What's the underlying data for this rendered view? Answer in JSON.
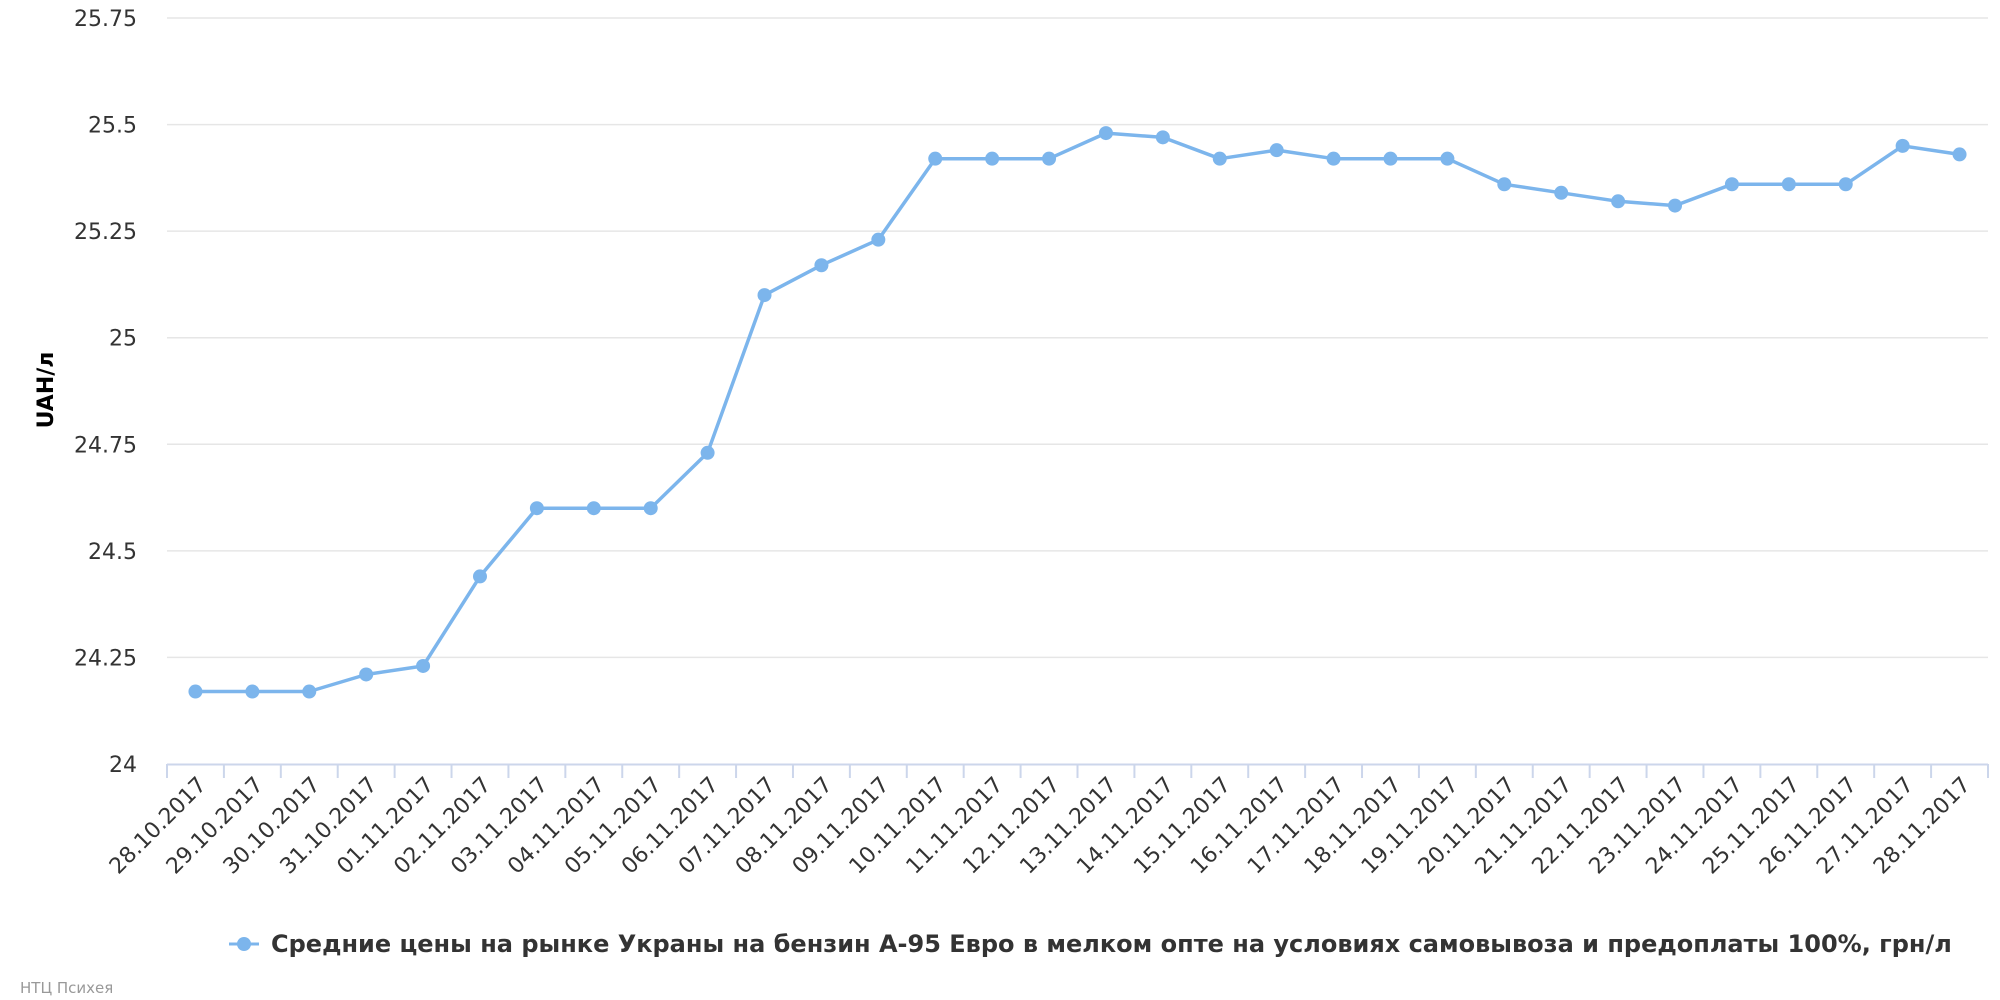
{
  "chart_data": {
    "type": "line",
    "title": "",
    "xlabel": "",
    "ylabel": "UAH/л",
    "ylim": [
      24,
      25.75
    ],
    "yticks": [
      "24",
      "24.25",
      "24.5",
      "24.75",
      "25",
      "25.25",
      "25.5",
      "25.75"
    ],
    "grid": true,
    "legend_position": "bottom-center",
    "categories": [
      "28.10.2017",
      "29.10.2017",
      "30.10.2017",
      "31.10.2017",
      "01.11.2017",
      "02.11.2017",
      "03.11.2017",
      "04.11.2017",
      "05.11.2017",
      "06.11.2017",
      "07.11.2017",
      "08.11.2017",
      "09.11.2017",
      "10.11.2017",
      "11.11.2017",
      "12.11.2017",
      "13.11.2017",
      "14.11.2017",
      "15.11.2017",
      "16.11.2017",
      "17.11.2017",
      "18.11.2017",
      "19.11.2017",
      "20.11.2017",
      "21.11.2017",
      "22.11.2017",
      "23.11.2017",
      "24.11.2017",
      "25.11.2017",
      "26.11.2017",
      "27.11.2017",
      "28.11.2017"
    ],
    "series": [
      {
        "name": "Средние цены на рынке Украны на бензин А-95 Евро в мелком опте на условиях самовывоза и предоплаты 100%, грн/л",
        "color": "#7cb5ec",
        "values": [
          24.17,
          24.17,
          24.17,
          24.21,
          24.23,
          24.44,
          24.6,
          24.6,
          24.6,
          24.73,
          25.1,
          25.17,
          25.23,
          25.42,
          25.42,
          25.42,
          25.48,
          25.47,
          25.42,
          25.44,
          25.42,
          25.42,
          25.42,
          25.36,
          25.34,
          25.32,
          25.31,
          25.36,
          25.36,
          25.36,
          25.45,
          25.43
        ]
      }
    ]
  },
  "credits": "НТЦ Психея"
}
